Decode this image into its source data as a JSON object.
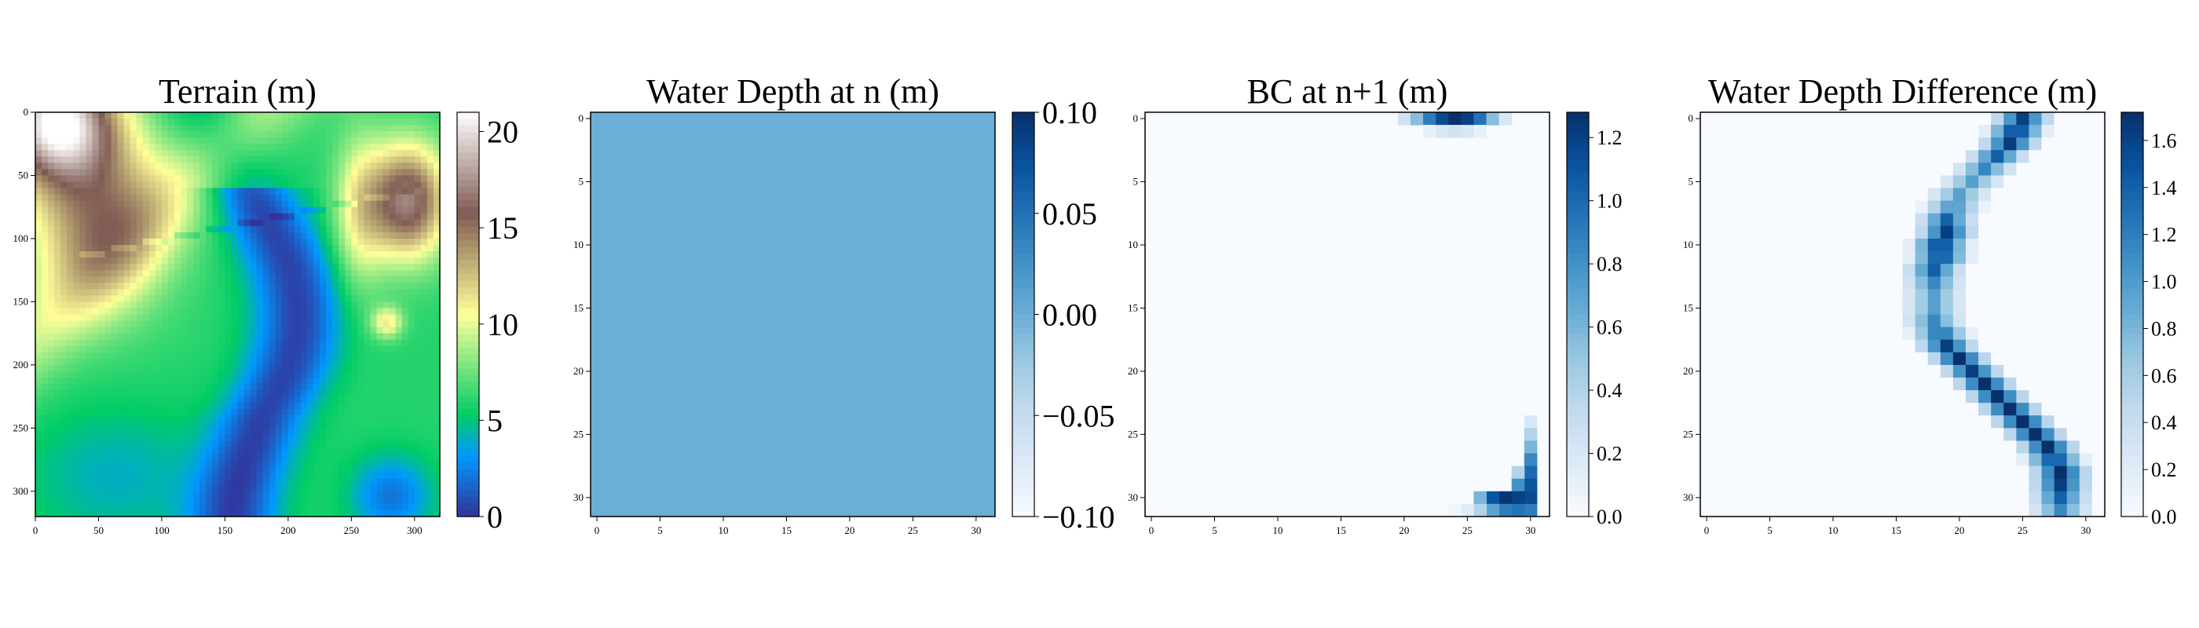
{
  "figure": {
    "panels": [
      {
        "id": "terrain",
        "title": "Terrain (m)",
        "colormap": "terrain",
        "x_ticks": [
          "0",
          "50",
          "100",
          "150",
          "200",
          "250",
          "300"
        ],
        "y_ticks": [
          "0",
          "50",
          "100",
          "150",
          "200",
          "250",
          "300"
        ],
        "cbar_ticks": [
          "0",
          "5",
          "10",
          "15",
          "20"
        ]
      },
      {
        "id": "depth_n",
        "title": "Water Depth at n (m)",
        "colormap": "Blues",
        "x_ticks": [
          "0",
          "5",
          "10",
          "15",
          "20",
          "25",
          "30"
        ],
        "y_ticks": [
          "0",
          "5",
          "10",
          "15",
          "20",
          "25",
          "30"
        ],
        "cbar_ticks": [
          "−0.10",
          "−0.05",
          "0.00",
          "0.05",
          "0.10"
        ]
      },
      {
        "id": "bc",
        "title": "BC at n+1 (m)",
        "colormap": "Blues",
        "x_ticks": [
          "0",
          "5",
          "10",
          "15",
          "20",
          "25",
          "30"
        ],
        "y_ticks": [
          "0",
          "5",
          "10",
          "15",
          "20",
          "25",
          "30"
        ],
        "cbar_ticks": [
          "0.0",
          "0.2",
          "0.4",
          "0.6",
          "0.8",
          "1.0",
          "1.2"
        ]
      },
      {
        "id": "diff",
        "title": "Water Depth Difference (m)",
        "colormap": "Blues",
        "x_ticks": [
          "0",
          "5",
          "10",
          "15",
          "20",
          "25",
          "30"
        ],
        "y_ticks": [
          "0",
          "5",
          "10",
          "15",
          "20",
          "25",
          "30"
        ],
        "cbar_ticks": [
          "0.0",
          "0.2",
          "0.4",
          "0.6",
          "0.8",
          "1.0",
          "1.2",
          "1.4",
          "1.6"
        ]
      }
    ]
  },
  "chart_data": [
    {
      "type": "heatmap",
      "title": "Terrain (m)",
      "grid_size": [
        320,
        320
      ],
      "xlim": [
        0,
        320
      ],
      "ylim": [
        320,
        0
      ],
      "value_range": [
        0,
        21
      ],
      "description_values": "elevation field; high ridges top-left (~20) and right (~17), low channel (~0-2) meandering from center to bottom-right"
    },
    {
      "type": "heatmap",
      "title": "Water Depth at n (m)",
      "grid_size": [
        32,
        32
      ],
      "xlim": [
        0,
        31
      ],
      "ylim": [
        31,
        0
      ],
      "value_range": [
        -0.1,
        0.1
      ],
      "uniform_value": 0.0
    },
    {
      "type": "heatmap",
      "title": "BC at n+1 (m)",
      "grid_size": [
        32,
        32
      ],
      "xlim": [
        0,
        31
      ],
      "ylim": [
        31,
        0
      ],
      "value_range": [
        0,
        1.28
      ],
      "nonzero_cells": [
        [
          20,
          0,
          0.25
        ],
        [
          21,
          0,
          0.55
        ],
        [
          22,
          0,
          0.9
        ],
        [
          23,
          0,
          1.15
        ],
        [
          24,
          0,
          1.28
        ],
        [
          25,
          0,
          1.2
        ],
        [
          26,
          0,
          0.95
        ],
        [
          27,
          0,
          0.55
        ],
        [
          28,
          0,
          0.2
        ],
        [
          22,
          1,
          0.1
        ],
        [
          23,
          1,
          0.2
        ],
        [
          24,
          1,
          0.25
        ],
        [
          25,
          1,
          0.2
        ],
        [
          26,
          1,
          0.1
        ],
        [
          30,
          24,
          0.2
        ],
        [
          30,
          25,
          0.4
        ],
        [
          30,
          26,
          0.6
        ],
        [
          30,
          27,
          0.85
        ],
        [
          30,
          28,
          1.0
        ],
        [
          30,
          29,
          1.1
        ],
        [
          30,
          30,
          1.15
        ],
        [
          30,
          31,
          0.9
        ],
        [
          29,
          28,
          0.4
        ],
        [
          29,
          29,
          0.8
        ],
        [
          29,
          30,
          1.2
        ],
        [
          29,
          31,
          0.95
        ],
        [
          28,
          30,
          1.25
        ],
        [
          28,
          31,
          0.9
        ],
        [
          27,
          30,
          1.1
        ],
        [
          27,
          31,
          0.7
        ],
        [
          26,
          30,
          0.6
        ],
        [
          26,
          31,
          0.4
        ],
        [
          25,
          31,
          0.15
        ],
        [
          24,
          31,
          0.05
        ]
      ]
    },
    {
      "type": "heatmap",
      "title": "Water Depth Difference (m)",
      "grid_size": [
        32,
        32
      ],
      "xlim": [
        0,
        31
      ],
      "ylim": [
        31,
        0
      ],
      "value_range": [
        0,
        1.72
      ],
      "channel_centers": [
        [
          25,
          0
        ],
        [
          24.5,
          1
        ],
        [
          24,
          2
        ],
        [
          23,
          3
        ],
        [
          22,
          4
        ],
        [
          21,
          5
        ],
        [
          20,
          6
        ],
        [
          19.5,
          7
        ],
        [
          19,
          8
        ],
        [
          19,
          9
        ],
        [
          18.5,
          10
        ],
        [
          18.5,
          11
        ],
        [
          18,
          12
        ],
        [
          18,
          13
        ],
        [
          18,
          14
        ],
        [
          18,
          15
        ],
        [
          18,
          16
        ],
        [
          18.5,
          17
        ],
        [
          19,
          18
        ],
        [
          20,
          19
        ],
        [
          21,
          20
        ],
        [
          22,
          21
        ],
        [
          23,
          22
        ],
        [
          24,
          23
        ],
        [
          25,
          24
        ],
        [
          26,
          25
        ],
        [
          27,
          26
        ],
        [
          27.5,
          27
        ],
        [
          28,
          28
        ],
        [
          28,
          29
        ],
        [
          28,
          30
        ],
        [
          28,
          31
        ]
      ],
      "peak_value": 1.72
    }
  ]
}
